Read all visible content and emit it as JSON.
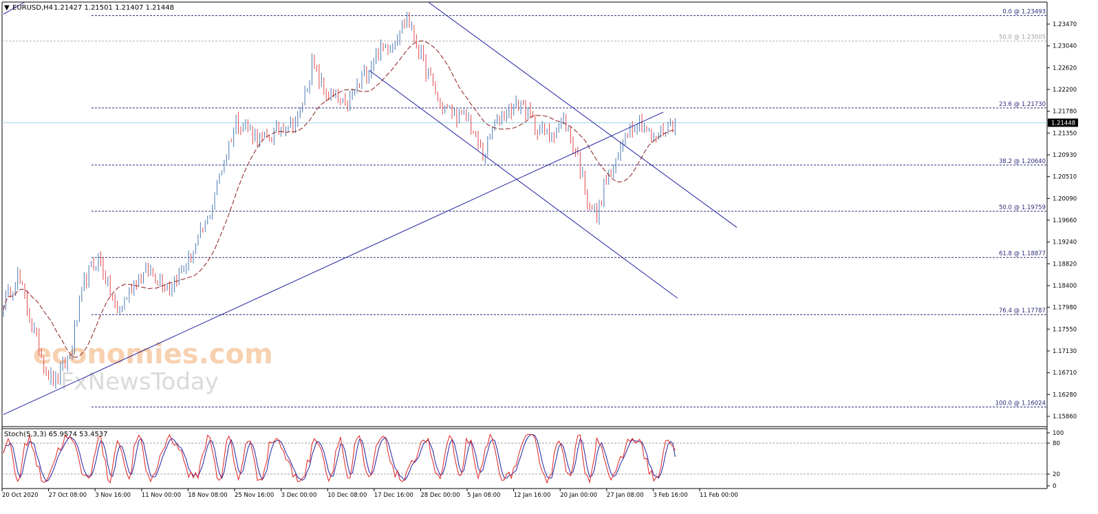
{
  "header": {
    "symbol": "EURUSD,H4",
    "ohlc": "1.21427 1.21501 1.21407 1.21448"
  },
  "stoch_header": "Stoch(5,3,3) 65.9574 53.4537",
  "watermark": {
    "line1": "economies.com",
    "line2": "FxNewsToday"
  },
  "colors": {
    "up_candle": "#4a78b5",
    "down_candle": "#e0474c",
    "ma_line": "#8b1a1a",
    "trendline": "#1f1fa0",
    "fib_line": "#2a2a7a",
    "bid_line": "#9fd1e6",
    "stoch_main": "#e02020",
    "stoch_signal": "#1f1fa0"
  },
  "chart_data": {
    "type": "candlestick",
    "price_range": [
      1.1565,
      1.2375
    ],
    "price_ticks": [
      "1.23470",
      "1.23040",
      "1.22620",
      "1.22200",
      "1.21780",
      "1.21350",
      "1.20930",
      "1.20510",
      "1.20090",
      "1.19660",
      "1.19240",
      "1.18820",
      "1.18400",
      "1.17980",
      "1.17550",
      "1.17130",
      "1.16710",
      "1.16280",
      "1.15860"
    ],
    "current_price": "1.21448",
    "time_labels": [
      "20 Oct 2020",
      "27 Oct 08:00",
      "3 Nov 16:00",
      "11 Nov 00:00",
      "18 Nov 08:00",
      "25 Nov 16:00",
      "3 Dec 00:00",
      "10 Dec 08:00",
      "17 Dec 16:00",
      "28 Dec 00:00",
      "5 Jan 08:00",
      "12 Jan 16:00",
      "20 Jan 00:00",
      "27 Jan 08:00",
      "3 Feb 16:00",
      "11 Feb 00:00"
    ],
    "fib_levels": [
      {
        "label": "0.0 @ 1.23493",
        "price": 1.23493,
        "faded": false
      },
      {
        "label": "50.0 @ 1.23005",
        "price": 1.23005,
        "faded": true
      },
      {
        "label": "23.6 @ 1.21730",
        "price": 1.2173,
        "faded": false
      },
      {
        "label": "38.2 @ 1.20640",
        "price": 1.2064,
        "faded": false
      },
      {
        "label": "50.0 @ 1.19759",
        "price": 1.19759,
        "faded": false
      },
      {
        "label": "61.8 @ 1.18877",
        "price": 1.18877,
        "faded": false
      },
      {
        "label": "76.4 @ 1.17787",
        "price": 1.17787,
        "faded": false
      },
      {
        "label": "100.0 @ 1.16024",
        "price": 1.16024,
        "faded": false
      }
    ],
    "anchors": [
      [
        0,
        1.18
      ],
      [
        6,
        1.1855
      ],
      [
        12,
        1.176
      ],
      [
        18,
        1.167
      ],
      [
        22,
        1.165
      ],
      [
        28,
        1.17
      ],
      [
        34,
        1.184
      ],
      [
        40,
        1.189
      ],
      [
        48,
        1.178
      ],
      [
        56,
        1.185
      ],
      [
        62,
        1.186
      ],
      [
        70,
        1.183
      ],
      [
        78,
        1.188
      ],
      [
        86,
        1.196
      ],
      [
        92,
        1.206
      ],
      [
        98,
        1.215
      ],
      [
        104,
        1.213
      ],
      [
        110,
        1.211
      ],
      [
        118,
        1.214
      ],
      [
        124,
        1.215
      ],
      [
        130,
        1.2255
      ],
      [
        136,
        1.22
      ],
      [
        144,
        1.2175
      ],
      [
        150,
        1.222
      ],
      [
        158,
        1.228
      ],
      [
        164,
        1.23
      ],
      [
        170,
        1.2345
      ],
      [
        176,
        1.227
      ],
      [
        184,
        1.218
      ],
      [
        190,
        1.216
      ],
      [
        196,
        1.215
      ],
      [
        202,
        1.208
      ],
      [
        206,
        1.213
      ],
      [
        212,
        1.217
      ],
      [
        218,
        1.218
      ],
      [
        224,
        1.214
      ],
      [
        230,
        1.212
      ],
      [
        236,
        1.215
      ],
      [
        242,
        1.208
      ],
      [
        246,
        1.2
      ],
      [
        250,
        1.1965
      ],
      [
        254,
        1.204
      ],
      [
        258,
        1.206
      ],
      [
        262,
        1.213
      ],
      [
        268,
        1.215
      ],
      [
        274,
        1.211
      ],
      [
        280,
        1.214
      ],
      [
        283,
        1.2145
      ]
    ],
    "candle_count": 284,
    "trendlines": [
      {
        "name": "upper-left-segment",
        "x1_t": 0,
        "p1": 1.2352,
        "x2_t": 9,
        "p2": 1.2375
      },
      {
        "name": "ascending-support",
        "x1_t": 0,
        "p1": 1.1588,
        "x2_t": 278,
        "p2": 1.2165
      },
      {
        "name": "channel-upper",
        "x1_t": 179,
        "p1": 1.2375,
        "x2_t": 309,
        "p2": 1.1945
      },
      {
        "name": "channel-lower",
        "x1_t": 154,
        "p1": 1.2245,
        "x2_t": 284,
        "p2": 1.181
      }
    ],
    "stoch_range": [
      0,
      100
    ],
    "stoch_ticks": [
      "100",
      "80",
      "20",
      "0"
    ],
    "stoch_levels": [
      80,
      20
    ],
    "stoch_last": {
      "main": 65.9574,
      "signal": 53.4537
    }
  }
}
